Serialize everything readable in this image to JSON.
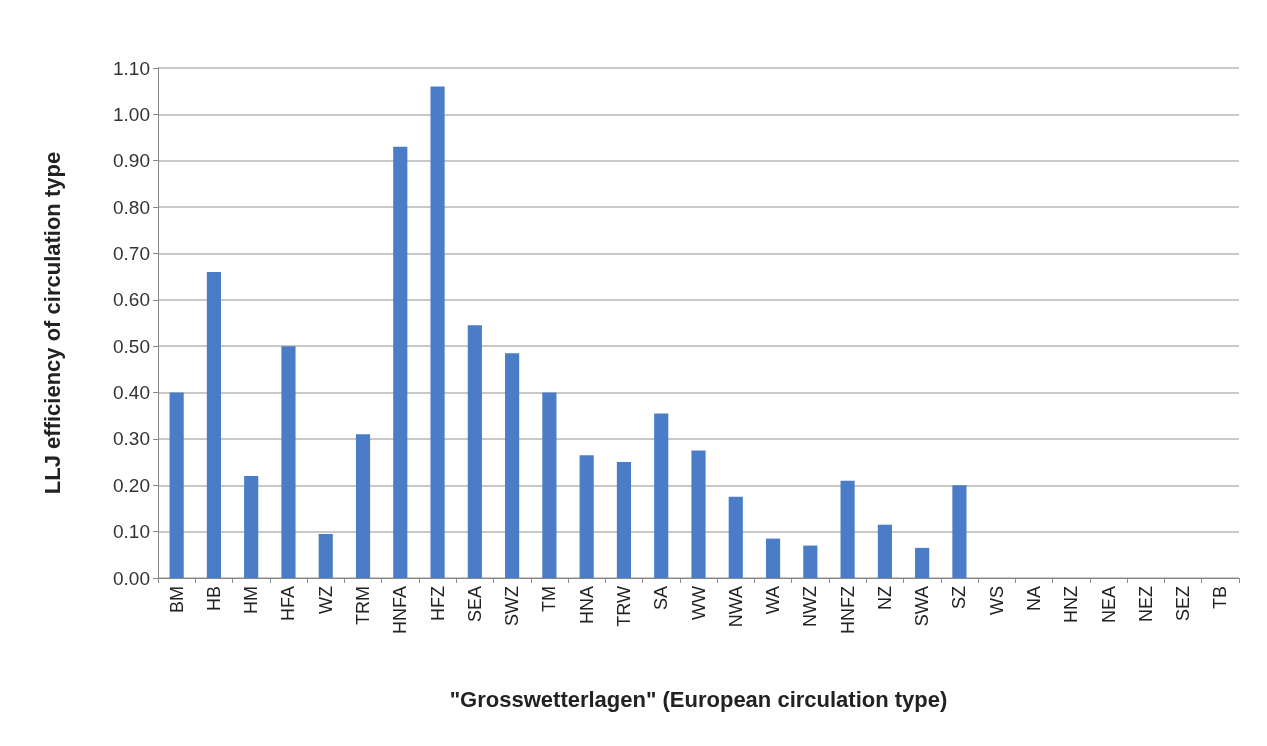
{
  "chart_data": {
    "type": "bar",
    "xlabel": "\"Grosswetterlagen\" (European circulation type)",
    "ylabel": "LLJ efficiency of circulation type",
    "categories": [
      "BM",
      "HB",
      "HM",
      "HFA",
      "WZ",
      "TRM",
      "HNFA",
      "HFZ",
      "SEA",
      "SWZ",
      "TM",
      "HNA",
      "TRW",
      "SA",
      "WW",
      "NWA",
      "WA",
      "NWZ",
      "HNFZ",
      "NZ",
      "SWA",
      "SZ",
      "WS",
      "NA",
      "HNZ",
      "NEA",
      "NEZ",
      "SEZ",
      "TB"
    ],
    "values": [
      0.4,
      0.66,
      0.22,
      0.5,
      0.095,
      0.31,
      0.93,
      1.06,
      0.545,
      0.485,
      0.4,
      0.265,
      0.25,
      0.355,
      0.275,
      0.175,
      0.085,
      0.07,
      0.21,
      0.115,
      0.065,
      0.2,
      0,
      0,
      0,
      0,
      0,
      0,
      0
    ],
    "color": "#4a7cc7",
    "ylim": [
      0,
      1.1
    ],
    "yticks": [
      {
        "value": 0,
        "label": "0.00"
      },
      {
        "value": 0.1,
        "label": "0.10"
      },
      {
        "value": 0.2,
        "label": "0.20"
      },
      {
        "value": 0.3,
        "label": "0.30"
      },
      {
        "value": 0.4,
        "label": "0.40"
      },
      {
        "value": 0.5,
        "label": "0.50"
      },
      {
        "value": 0.6,
        "label": "0.60"
      },
      {
        "value": 0.7,
        "label": "0.70"
      },
      {
        "value": 0.8,
        "label": "0.80"
      },
      {
        "value": 0.9,
        "label": "0.90"
      },
      {
        "value": 1.0,
        "label": "1.00"
      },
      {
        "value": 1.1,
        "label": "1.10"
      }
    ],
    "grid": "y"
  }
}
